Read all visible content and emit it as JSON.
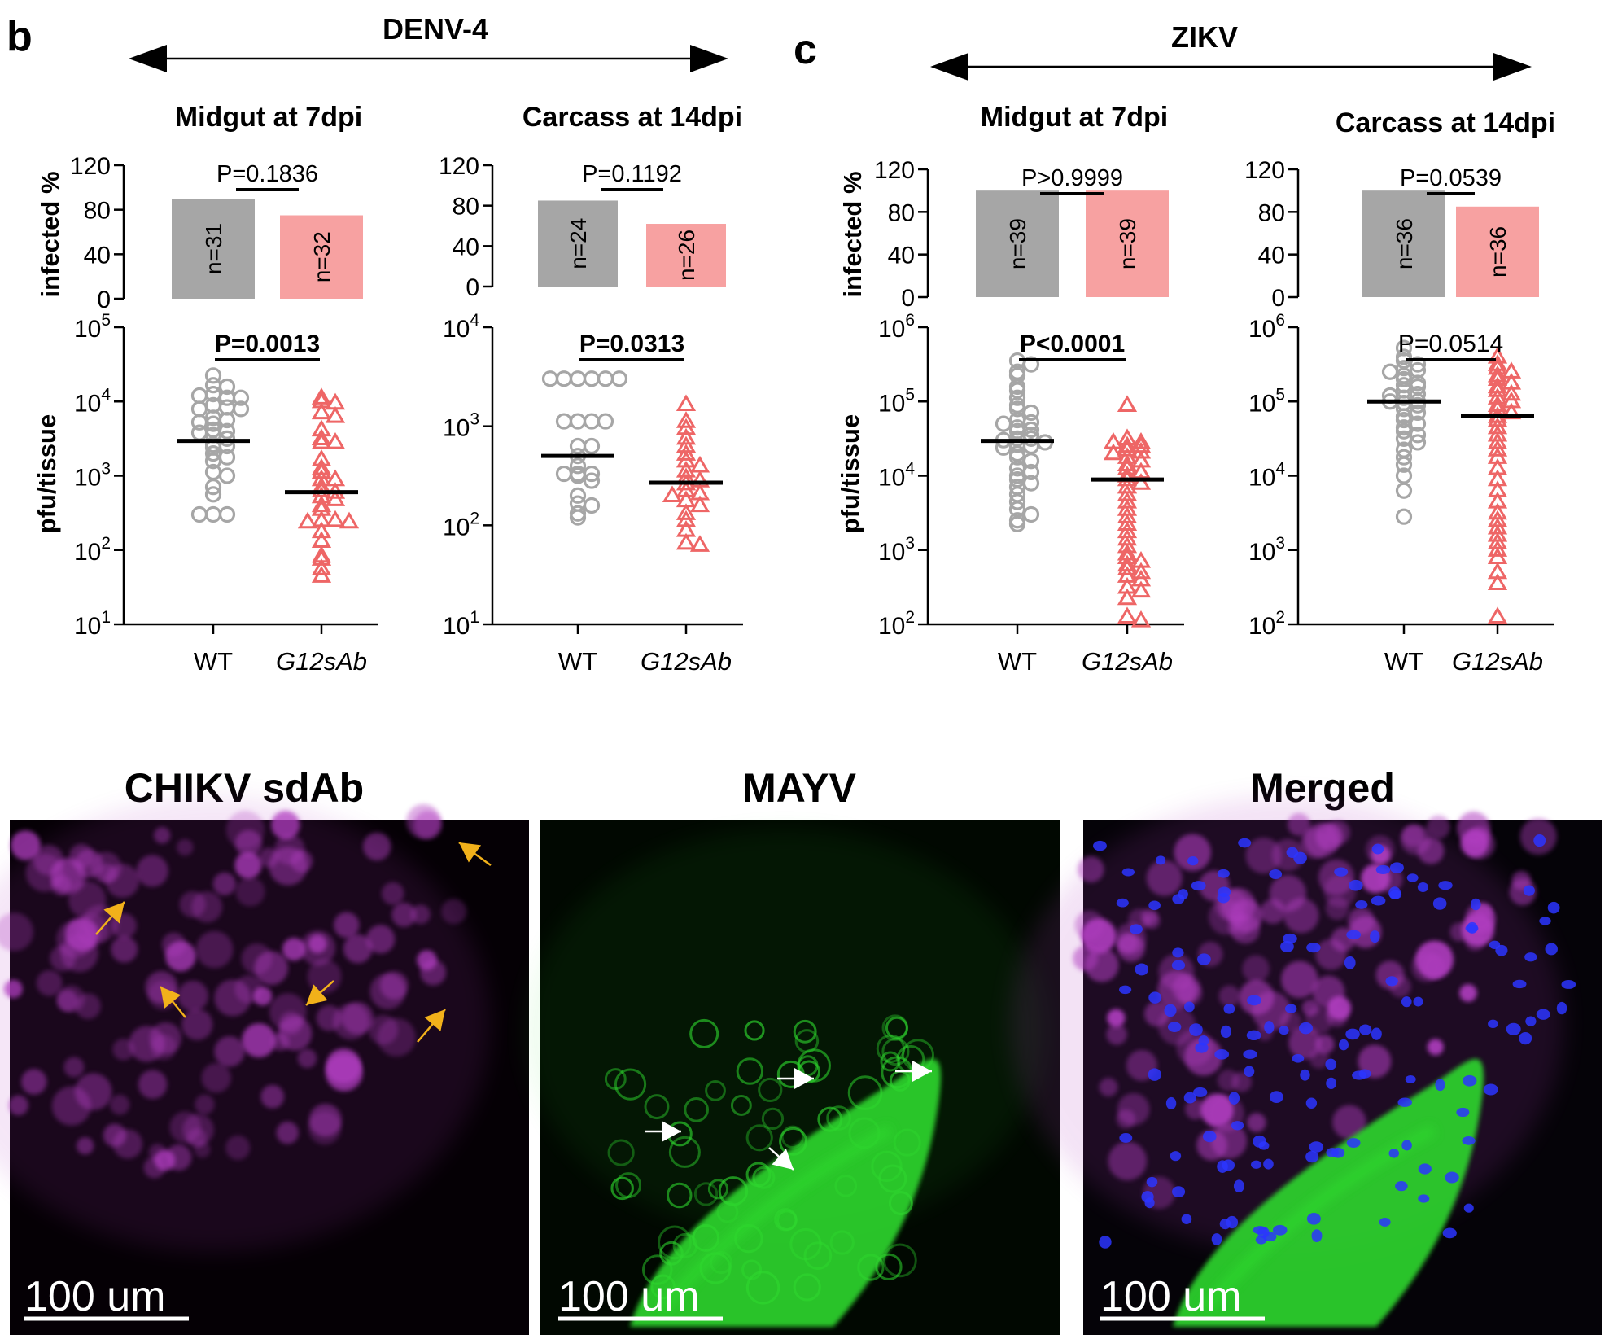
{
  "colors": {
    "wt": "#a6a6a6",
    "wt_bar": "#a6a6a6",
    "mut": "#ee6666",
    "mut_bar": "#f7a1a1",
    "magenta": "#b03cc0",
    "green": "#2ed82e",
    "blue": "#2b35ff",
    "yellow_arrow": "#f2b11a",
    "white_arrow": "#ffffff"
  },
  "panels": {
    "b": {
      "letter": "b",
      "virus": "DENV-4"
    },
    "c": {
      "letter": "c",
      "virus": "ZIKV"
    }
  },
  "labels": {
    "infected": "infected %",
    "pfu": "pfu/tissue"
  },
  "chart_data": [
    {
      "id": "denv-midgut",
      "type": "bar+scatter",
      "title": "Midgut at 7dpi",
      "categories": [
        "WT",
        "G12sAb"
      ],
      "bar": {
        "ylabel": "infected %",
        "ylim": [
          0,
          120
        ],
        "yticks": [
          "0",
          "40",
          "80",
          "120"
        ],
        "values": [
          90,
          75
        ],
        "n_labels": [
          "n=31",
          "n=32"
        ],
        "p_value": "P=0.1836"
      },
      "scatter": {
        "ylabel": "pfu/tissue",
        "log_range": [
          1,
          5
        ],
        "ytick_base": "10",
        "ytick_exps": [
          "1",
          "2",
          "3",
          "4",
          "5"
        ],
        "p_value": "P=0.0013",
        "p_bold": true,
        "medians": [
          3.47,
          2.78
        ],
        "series": [
          {
            "name": "WT",
            "marker": "circle",
            "values": [
              4.35,
              4.22,
              4.2,
              4.1,
              4.05,
              4.08,
              4.05,
              3.95,
              3.92,
              3.9,
              3.9,
              3.78,
              3.75,
              3.72,
              3.7,
              3.62,
              3.6,
              3.58,
              3.55,
              3.5,
              3.42,
              3.4,
              3.38,
              3.3,
              3.25,
              3.2,
              3.05,
              3.0,
              2.85,
              2.75,
              2.48,
              2.48,
              2.48
            ]
          },
          {
            "name": "G12sAb",
            "marker": "triangle",
            "values": [
              4.05,
              4.0,
              3.98,
              3.85,
              3.8,
              3.62,
              3.5,
              3.45,
              3.45,
              3.22,
              3.1,
              3.05,
              2.95,
              2.95,
              2.85,
              2.8,
              2.78,
              2.72,
              2.68,
              2.6,
              2.55,
              2.4,
              2.4,
              2.38,
              2.38,
              2.25,
              2.12,
              1.92,
              1.88,
              1.75,
              1.65
            ]
          }
        ]
      }
    },
    {
      "id": "denv-carcass",
      "type": "bar+scatter",
      "title": "Carcass at 14dpi",
      "categories": [
        "WT",
        "G12sAb"
      ],
      "bar": {
        "ylabel": "infected %",
        "ylim": [
          0,
          120
        ],
        "yticks": [
          "0",
          "40",
          "80",
          "120"
        ],
        "values": [
          85,
          62
        ],
        "n_labels": [
          "n=24",
          "n=26"
        ],
        "p_value": "P=0.1192"
      },
      "scatter": {
        "ylabel": "pfu/tissue",
        "log_range": [
          1,
          4
        ],
        "ytick_base": "10",
        "ytick_exps": [
          "1",
          "2",
          "3",
          "4"
        ],
        "p_value": "P=0.0313",
        "p_bold": true,
        "medians": [
          2.7,
          2.43
        ],
        "series": [
          {
            "name": "WT",
            "marker": "circle",
            "values": [
              3.48,
              3.48,
              3.48,
              3.48,
              3.48,
              3.48,
              3.05,
              3.05,
              3.05,
              3.05,
              2.8,
              2.8,
              2.7,
              2.6,
              2.52,
              2.52,
              2.52,
              2.5,
              2.45,
              2.3,
              2.22,
              2.2,
              2.12,
              2.08
            ]
          },
          {
            "name": "G12sAb",
            "marker": "triangle",
            "values": [
              3.22,
              3.05,
              2.98,
              2.88,
              2.8,
              2.72,
              2.65,
              2.6,
              2.55,
              2.48,
              2.45,
              2.42,
              2.35,
              2.32,
              2.3,
              2.25,
              2.2,
              2.12,
              2.05,
              1.95,
              1.82,
              1.8
            ]
          }
        ]
      }
    },
    {
      "id": "zikv-midgut",
      "type": "bar+scatter",
      "title": "Midgut at 7dpi",
      "categories": [
        "WT",
        "G12sAb"
      ],
      "bar": {
        "ylabel": "infected %",
        "ylim": [
          0,
          120
        ],
        "yticks": [
          "0",
          "40",
          "80",
          "120"
        ],
        "values": [
          100,
          100
        ],
        "n_labels": [
          "n=39",
          "n=39"
        ],
        "p_value": "P>0.9999"
      },
      "scatter": {
        "ylabel": "pfu/tissue",
        "log_range": [
          2,
          6
        ],
        "ytick_base": "10",
        "ytick_exps": [
          "2",
          "3",
          "4",
          "5",
          "6"
        ],
        "p_value": "P<0.0001",
        "p_bold": true,
        "medians": [
          4.47,
          3.95
        ],
        "series": [
          {
            "name": "WT",
            "marker": "circle",
            "values": [
              5.55,
              5.5,
              5.4,
              5.35,
              5.2,
              5.15,
              5.05,
              4.95,
              4.9,
              4.85,
              4.75,
              4.72,
              4.7,
              4.65,
              4.62,
              4.6,
              4.55,
              4.5,
              4.5,
              4.48,
              4.45,
              4.42,
              4.4,
              4.38,
              4.3,
              4.25,
              4.2,
              4.1,
              4.05,
              4.0,
              3.95,
              3.9,
              3.85,
              3.75,
              3.65,
              3.55,
              3.48,
              3.4,
              3.35
            ]
          },
          {
            "name": "G12sAb",
            "marker": "triangle",
            "values": [
              4.95,
              4.5,
              4.45,
              4.45,
              4.4,
              4.4,
              4.35,
              4.32,
              4.3,
              4.25,
              4.2,
              4.15,
              4.1,
              4.05,
              4.0,
              3.95,
              3.9,
              3.85,
              3.75,
              3.65,
              3.55,
              3.45,
              3.35,
              3.25,
              3.15,
              3.05,
              2.95,
              2.9,
              2.85,
              2.8,
              2.75,
              2.7,
              2.65,
              2.6,
              2.5,
              2.45,
              2.35,
              2.1,
              2.05
            ]
          }
        ]
      }
    },
    {
      "id": "zikv-carcass",
      "type": "bar+scatter",
      "title": "Carcass at 14dpi",
      "categories": [
        "WT",
        "G12sAb"
      ],
      "bar": {
        "ylabel": "infected %",
        "ylim": [
          0,
          120
        ],
        "yticks": [
          "0",
          "40",
          "80",
          "120"
        ],
        "values": [
          100,
          85
        ],
        "n_labels": [
          "n=36",
          "n=36"
        ],
        "p_value": "P=0.0539"
      },
      "scatter": {
        "ylabel": "pfu/tissue",
        "log_range": [
          2,
          6
        ],
        "ytick_base": "10",
        "ytick_exps": [
          "2",
          "3",
          "4",
          "5",
          "6"
        ],
        "p_value": "P=0.0514",
        "p_bold": false,
        "medians": [
          5.0,
          4.8
        ],
        "series": [
          {
            "name": "WT",
            "marker": "circle",
            "values": [
              5.72,
              5.6,
              5.55,
              5.5,
              5.45,
              5.42,
              5.4,
              5.35,
              5.3,
              5.25,
              5.22,
              5.2,
              5.15,
              5.1,
              5.08,
              5.05,
              5.0,
              5.0,
              4.98,
              4.95,
              4.9,
              4.85,
              4.8,
              4.75,
              4.7,
              4.65,
              4.6,
              4.55,
              4.5,
              4.45,
              4.35,
              4.25,
              4.15,
              4.0,
              3.8,
              3.45
            ]
          },
          {
            "name": "G12sAb",
            "marker": "triangle",
            "values": [
              5.6,
              5.5,
              5.45,
              5.4,
              5.35,
              5.3,
              5.25,
              5.2,
              5.15,
              5.1,
              5.05,
              5.0,
              4.95,
              4.9,
              4.85,
              4.8,
              4.75,
              4.65,
              4.55,
              4.45,
              4.35,
              4.25,
              4.1,
              3.95,
              3.8,
              3.65,
              3.5,
              3.4,
              3.3,
              3.2,
              3.1,
              3.0,
              2.9,
              2.7,
              2.55,
              2.1
            ]
          }
        ]
      }
    }
  ],
  "micrographs": [
    {
      "id": "chikv",
      "title": "CHIKV sdAb",
      "scalebar": "100 um",
      "channel": "magenta",
      "arrows": "yellow"
    },
    {
      "id": "mayv",
      "title": "MAYV",
      "scalebar": "100 um",
      "channel": "green",
      "arrows": "white"
    },
    {
      "id": "merged",
      "title": "Merged",
      "scalebar": "100 um",
      "channel": "merged",
      "arrows": "none"
    }
  ]
}
